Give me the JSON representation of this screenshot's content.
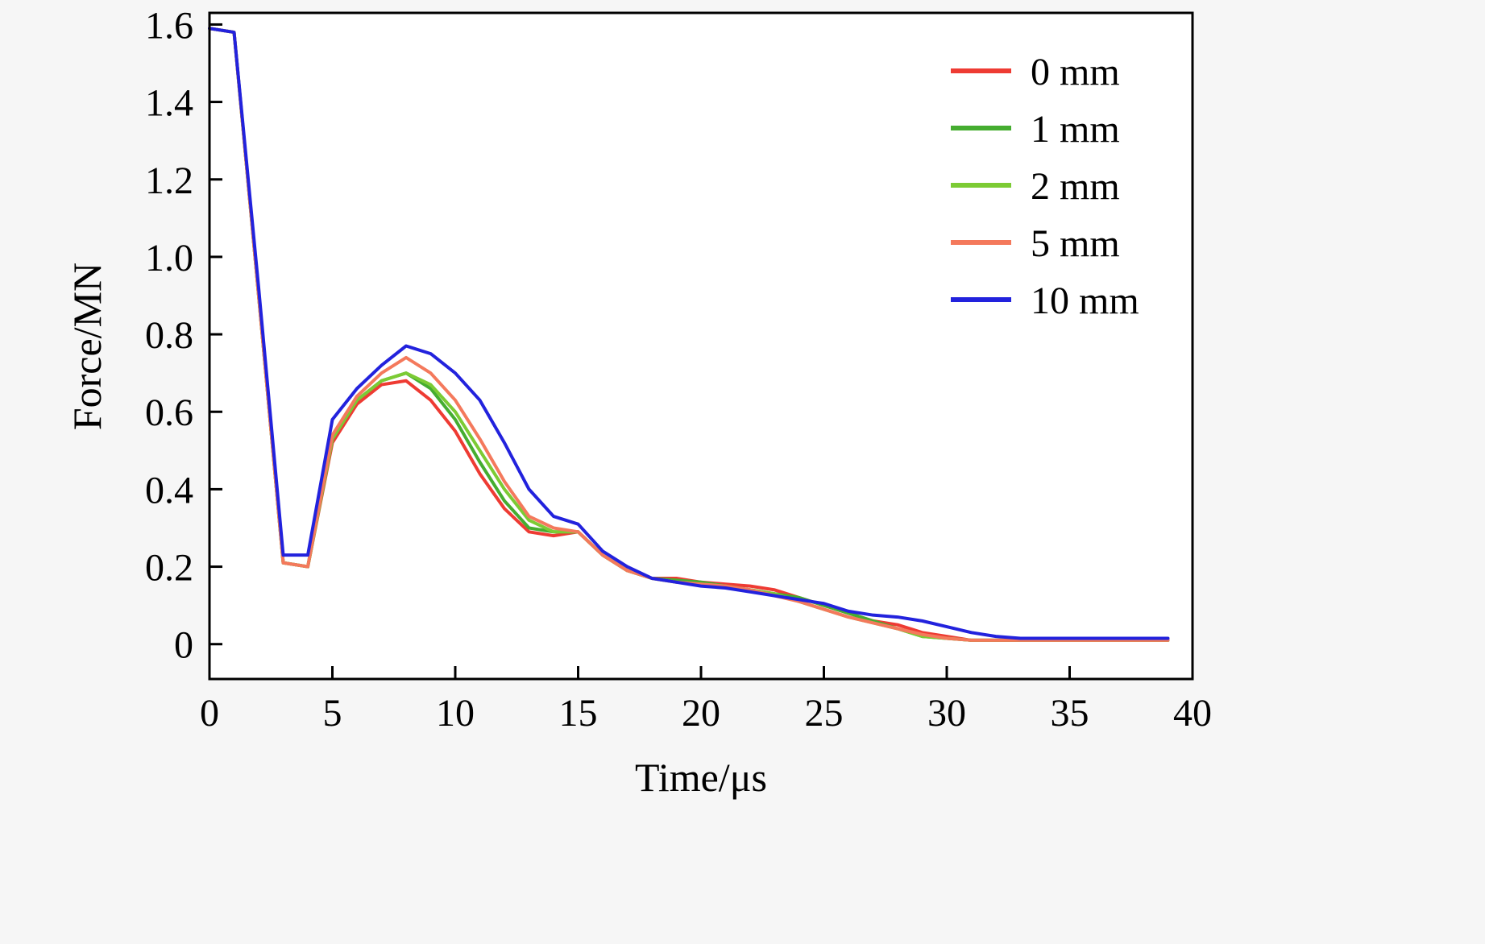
{
  "chart_data": {
    "type": "line",
    "title": "",
    "xlabel": "Time/μs",
    "ylabel": "Force/MN",
    "xlim": [
      0,
      40
    ],
    "ylim": [
      0,
      1.6
    ],
    "xticks": [
      0,
      5,
      10,
      15,
      20,
      25,
      30,
      35,
      40
    ],
    "xtick_labels": [
      "0",
      "5",
      "10",
      "15",
      "20",
      "25",
      "30",
      "35",
      "40"
    ],
    "yticks": [
      0,
      0.2,
      0.4,
      0.6,
      0.8,
      1.0,
      1.2,
      1.4,
      1.6
    ],
    "ytick_labels": [
      "0",
      "0.2",
      "0.4",
      "0.6",
      "0.8",
      "1.0",
      "1.2",
      "1.4",
      "1.6"
    ],
    "grid": false,
    "legend_position": "top-right",
    "background": "#f6f6f6",
    "plot_background": "#ffffff",
    "axis_color": "#000000",
    "text_color": "#000000",
    "x": [
      0,
      1,
      2,
      3,
      4,
      5,
      6,
      7,
      8,
      9,
      10,
      11,
      12,
      13,
      14,
      15,
      16,
      17,
      18,
      19,
      20,
      21,
      22,
      23,
      24,
      25,
      26,
      27,
      28,
      29,
      30,
      31,
      32,
      33,
      34,
      35,
      36,
      37,
      38,
      39
    ],
    "series": [
      {
        "name": "0 mm",
        "color": "#ee3b33",
        "values": [
          1.59,
          1.58,
          0.9,
          0.21,
          0.2,
          0.52,
          0.62,
          0.67,
          0.68,
          0.63,
          0.55,
          0.44,
          0.35,
          0.29,
          0.28,
          0.29,
          0.23,
          0.19,
          0.17,
          0.17,
          0.16,
          0.155,
          0.15,
          0.14,
          0.12,
          0.1,
          0.08,
          0.06,
          0.05,
          0.03,
          0.02,
          0.01,
          0.01,
          0.01,
          0.01,
          0.01,
          0.01,
          0.01,
          0.01,
          0.01
        ]
      },
      {
        "name": "1 mm",
        "color": "#45ad30",
        "values": [
          1.59,
          1.58,
          0.9,
          0.21,
          0.2,
          0.53,
          0.63,
          0.68,
          0.7,
          0.66,
          0.58,
          0.47,
          0.37,
          0.3,
          0.29,
          0.29,
          0.23,
          0.19,
          0.17,
          0.165,
          0.16,
          0.15,
          0.14,
          0.13,
          0.12,
          0.1,
          0.08,
          0.06,
          0.04,
          0.02,
          0.015,
          0.01,
          0.01,
          0.01,
          0.01,
          0.01,
          0.01,
          0.01,
          0.01,
          0.01
        ]
      },
      {
        "name": "2 mm",
        "color": "#7ccb34",
        "values": [
          1.59,
          1.58,
          0.9,
          0.21,
          0.2,
          0.53,
          0.63,
          0.68,
          0.7,
          0.67,
          0.6,
          0.5,
          0.4,
          0.32,
          0.29,
          0.29,
          0.23,
          0.19,
          0.17,
          0.16,
          0.155,
          0.15,
          0.14,
          0.13,
          0.11,
          0.09,
          0.07,
          0.055,
          0.04,
          0.02,
          0.015,
          0.01,
          0.01,
          0.01,
          0.01,
          0.01,
          0.01,
          0.01,
          0.01,
          0.01
        ]
      },
      {
        "name": "5 mm",
        "color": "#f4795c",
        "values": [
          1.59,
          1.58,
          0.9,
          0.21,
          0.2,
          0.54,
          0.64,
          0.7,
          0.74,
          0.7,
          0.63,
          0.53,
          0.42,
          0.33,
          0.3,
          0.29,
          0.23,
          0.19,
          0.17,
          0.16,
          0.155,
          0.15,
          0.14,
          0.125,
          0.11,
          0.09,
          0.07,
          0.055,
          0.04,
          0.025,
          0.015,
          0.01,
          0.01,
          0.01,
          0.01,
          0.01,
          0.01,
          0.01,
          0.01,
          0.01
        ]
      },
      {
        "name": "10 mm",
        "color": "#2222dd",
        "values": [
          1.59,
          1.58,
          0.92,
          0.23,
          0.23,
          0.58,
          0.66,
          0.72,
          0.77,
          0.75,
          0.7,
          0.63,
          0.52,
          0.4,
          0.33,
          0.31,
          0.24,
          0.2,
          0.17,
          0.16,
          0.15,
          0.145,
          0.135,
          0.125,
          0.115,
          0.105,
          0.085,
          0.075,
          0.07,
          0.06,
          0.045,
          0.03,
          0.02,
          0.015,
          0.015,
          0.015,
          0.015,
          0.015,
          0.015,
          0.015
        ]
      }
    ]
  }
}
